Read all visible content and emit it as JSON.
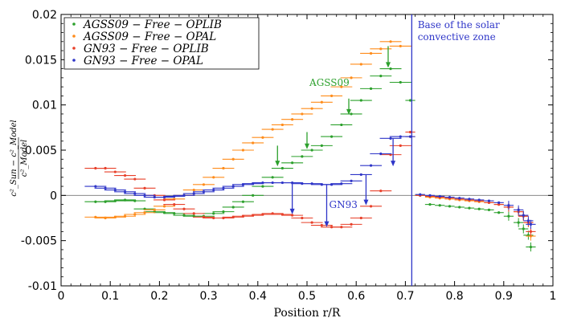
{
  "chart_data": {
    "type": "scatter",
    "title": "",
    "xlabel": "Position r/R",
    "ylabel_numerator": "c²_Sun − c²_Model",
    "ylabel_denominator": "c²_Model",
    "xlim": [
      0,
      1
    ],
    "ylim": [
      -0.01,
      0.02
    ],
    "x_ticks": [
      "0",
      "0.1",
      "0.2",
      "0.3",
      "0.4",
      "0.5",
      "0.6",
      "0.7",
      "0.8",
      "0.9",
      "1"
    ],
    "y_ticks": [
      "-0.01",
      "-0.005",
      "0",
      "0.005",
      "0.01",
      "0.015",
      "0.02"
    ],
    "legend_position": "top-left",
    "series": [
      {
        "name": "AGSS09 − Free − OPLIB",
        "color": "#2ca02c",
        "points": [
          [
            0.07,
            -0.0007
          ],
          [
            0.09,
            -0.0007
          ],
          [
            0.11,
            -0.0006
          ],
          [
            0.13,
            -0.0005
          ],
          [
            0.15,
            -0.0006
          ],
          [
            0.17,
            -0.0015
          ],
          [
            0.19,
            -0.0018
          ],
          [
            0.21,
            -0.0019
          ],
          [
            0.23,
            -0.002
          ],
          [
            0.25,
            -0.0022
          ],
          [
            0.27,
            -0.0023
          ],
          [
            0.29,
            -0.0023
          ],
          [
            0.31,
            -0.002
          ],
          [
            0.33,
            -0.0018
          ],
          [
            0.35,
            -0.0013
          ],
          [
            0.37,
            -0.0007
          ],
          [
            0.39,
            0.0
          ],
          [
            0.41,
            0.001
          ],
          [
            0.43,
            0.002
          ],
          [
            0.45,
            0.003
          ],
          [
            0.47,
            0.0036
          ],
          [
            0.49,
            0.0043
          ],
          [
            0.51,
            0.005
          ],
          [
            0.53,
            0.0055
          ],
          [
            0.55,
            0.0065
          ],
          [
            0.57,
            0.0078
          ],
          [
            0.59,
            0.009
          ],
          [
            0.61,
            0.0105
          ],
          [
            0.63,
            0.0118
          ],
          [
            0.65,
            0.0132
          ],
          [
            0.67,
            0.014
          ],
          [
            0.69,
            0.0125
          ],
          [
            0.71,
            0.0105
          ],
          [
            0.73,
            0.0
          ],
          [
            0.75,
            -0.001
          ],
          [
            0.77,
            -0.0011
          ],
          [
            0.79,
            -0.0012
          ],
          [
            0.81,
            -0.0013
          ],
          [
            0.83,
            -0.0014
          ],
          [
            0.85,
            -0.0015
          ],
          [
            0.87,
            -0.0016
          ],
          [
            0.89,
            -0.0019
          ],
          [
            0.91,
            -0.0023
          ],
          [
            0.93,
            -0.003
          ],
          [
            0.94,
            -0.0037
          ],
          [
            0.95,
            -0.0044
          ],
          [
            0.955,
            -0.0057
          ]
        ]
      },
      {
        "name": "AGSS09 − Free − OPAL",
        "color": "#ff8c1a",
        "points": [
          [
            0.07,
            -0.0024
          ],
          [
            0.09,
            -0.0025
          ],
          [
            0.11,
            -0.0024
          ],
          [
            0.13,
            -0.0023
          ],
          [
            0.15,
            -0.0021
          ],
          [
            0.17,
            -0.0019
          ],
          [
            0.19,
            -0.0016
          ],
          [
            0.21,
            -0.0012
          ],
          [
            0.23,
            -0.0004
          ],
          [
            0.25,
            0.0
          ],
          [
            0.27,
            0.0006
          ],
          [
            0.29,
            0.0012
          ],
          [
            0.31,
            0.002
          ],
          [
            0.33,
            0.003
          ],
          [
            0.35,
            0.004
          ],
          [
            0.37,
            0.005
          ],
          [
            0.39,
            0.0058
          ],
          [
            0.41,
            0.0064
          ],
          [
            0.43,
            0.0073
          ],
          [
            0.45,
            0.0078
          ],
          [
            0.47,
            0.0084
          ],
          [
            0.49,
            0.009
          ],
          [
            0.51,
            0.0096
          ],
          [
            0.53,
            0.0103
          ],
          [
            0.55,
            0.011
          ],
          [
            0.57,
            0.012
          ],
          [
            0.59,
            0.013
          ],
          [
            0.61,
            0.0145
          ],
          [
            0.63,
            0.0157
          ],
          [
            0.65,
            0.0162
          ],
          [
            0.67,
            0.017
          ],
          [
            0.69,
            0.0165
          ],
          [
            0.71,
            0.0065
          ],
          [
            0.73,
            0.0
          ],
          [
            0.75,
            -0.0002
          ],
          [
            0.77,
            -0.0003
          ],
          [
            0.79,
            -0.0004
          ],
          [
            0.81,
            -0.0005
          ],
          [
            0.83,
            -0.0006
          ],
          [
            0.85,
            -0.0007
          ],
          [
            0.87,
            -0.0008
          ],
          [
            0.89,
            -0.001
          ],
          [
            0.91,
            -0.0013
          ],
          [
            0.93,
            -0.0018
          ],
          [
            0.94,
            -0.0023
          ],
          [
            0.95,
            -0.003
          ],
          [
            0.955,
            -0.0045
          ]
        ]
      },
      {
        "name": "GN93 − Free − OPLIB",
        "color": "#e8402a",
        "points": [
          [
            0.07,
            0.003
          ],
          [
            0.09,
            0.003
          ],
          [
            0.11,
            0.0026
          ],
          [
            0.13,
            0.0022
          ],
          [
            0.15,
            0.0018
          ],
          [
            0.17,
            0.0008
          ],
          [
            0.19,
            0.0
          ],
          [
            0.21,
            -0.0005
          ],
          [
            0.23,
            -0.001
          ],
          [
            0.25,
            -0.0015
          ],
          [
            0.27,
            -0.002
          ],
          [
            0.29,
            -0.0024
          ],
          [
            0.31,
            -0.0025
          ],
          [
            0.33,
            -0.0025
          ],
          [
            0.35,
            -0.0024
          ],
          [
            0.37,
            -0.0023
          ],
          [
            0.39,
            -0.0022
          ],
          [
            0.41,
            -0.0021
          ],
          [
            0.43,
            -0.002
          ],
          [
            0.45,
            -0.0021
          ],
          [
            0.47,
            -0.0022
          ],
          [
            0.49,
            -0.0025
          ],
          [
            0.51,
            -0.003
          ],
          [
            0.53,
            -0.0033
          ],
          [
            0.55,
            -0.0035
          ],
          [
            0.57,
            -0.0035
          ],
          [
            0.59,
            -0.0032
          ],
          [
            0.61,
            -0.0025
          ],
          [
            0.63,
            -0.0012
          ],
          [
            0.65,
            0.0005
          ],
          [
            0.67,
            0.0045
          ],
          [
            0.69,
            0.0055
          ],
          [
            0.71,
            0.007
          ],
          [
            0.73,
            0.0
          ],
          [
            0.75,
            -0.0001
          ],
          [
            0.77,
            -0.0002
          ],
          [
            0.79,
            -0.0003
          ],
          [
            0.81,
            -0.0004
          ],
          [
            0.83,
            -0.0005
          ],
          [
            0.85,
            -0.0006
          ],
          [
            0.87,
            -0.0008
          ],
          [
            0.89,
            -0.001
          ],
          [
            0.91,
            -0.0013
          ],
          [
            0.93,
            -0.0018
          ],
          [
            0.94,
            -0.0023
          ],
          [
            0.95,
            -0.003
          ],
          [
            0.955,
            -0.004
          ]
        ]
      },
      {
        "name": "GN93 − Free − OPAL",
        "color": "#2e35c8",
        "points": [
          [
            0.07,
            0.001
          ],
          [
            0.09,
            0.0008
          ],
          [
            0.11,
            0.0006
          ],
          [
            0.13,
            0.0004
          ],
          [
            0.15,
            0.0002
          ],
          [
            0.17,
            0.0
          ],
          [
            0.19,
            -0.0002
          ],
          [
            0.21,
            -0.0002
          ],
          [
            0.23,
            -0.0001
          ],
          [
            0.25,
            0.0
          ],
          [
            0.27,
            0.0002
          ],
          [
            0.29,
            0.0004
          ],
          [
            0.31,
            0.0006
          ],
          [
            0.33,
            0.0008
          ],
          [
            0.35,
            0.001
          ],
          [
            0.37,
            0.0012
          ],
          [
            0.39,
            0.0013
          ],
          [
            0.41,
            0.0014
          ],
          [
            0.43,
            0.0014
          ],
          [
            0.45,
            0.0014
          ],
          [
            0.47,
            0.0014
          ],
          [
            0.49,
            0.0013
          ],
          [
            0.51,
            0.0013
          ],
          [
            0.53,
            0.0012
          ],
          [
            0.55,
            0.0012
          ],
          [
            0.57,
            0.0013
          ],
          [
            0.59,
            0.0016
          ],
          [
            0.61,
            0.0023
          ],
          [
            0.63,
            0.0033
          ],
          [
            0.65,
            0.0046
          ],
          [
            0.67,
            0.0063
          ],
          [
            0.69,
            0.0065
          ],
          [
            0.71,
            0.0065
          ],
          [
            0.73,
            0.0001
          ],
          [
            0.75,
            0.0
          ],
          [
            0.77,
            -0.0001
          ],
          [
            0.79,
            -0.0002
          ],
          [
            0.81,
            -0.0003
          ],
          [
            0.83,
            -0.0004
          ],
          [
            0.85,
            -0.0005
          ],
          [
            0.87,
            -0.0006
          ],
          [
            0.89,
            -0.0008
          ],
          [
            0.91,
            -0.0011
          ],
          [
            0.93,
            -0.0016
          ],
          [
            0.94,
            -0.0022
          ],
          [
            0.95,
            -0.0028
          ],
          [
            0.955,
            -0.0032
          ]
        ]
      }
    ],
    "vertical_line": {
      "x": 0.713,
      "color": "#2e35c8"
    },
    "annotations": [
      {
        "id": "base",
        "lines": [
          "Base of the solar",
          "convective zone"
        ],
        "color": "#2e35c8",
        "x": 0.725,
        "y": 0.0185
      },
      {
        "id": "agss",
        "lines": [
          "AGSS09"
        ],
        "color": "#2ca02c",
        "x": 0.505,
        "y": 0.0121
      },
      {
        "id": "gn",
        "lines": [
          "GN93"
        ],
        "color": "#2e35c8",
        "x": 0.545,
        "y": -0.0014
      }
    ],
    "arrows": [
      {
        "series": "AGSS09",
        "color": "#2ca02c",
        "x": 0.44,
        "from": 0.0055,
        "to": 0.0033
      },
      {
        "series": "AGSS09",
        "color": "#2ca02c",
        "x": 0.5,
        "from": 0.007,
        "to": 0.0052
      },
      {
        "series": "AGSS09",
        "color": "#2ca02c",
        "x": 0.585,
        "from": 0.0107,
        "to": 0.009
      },
      {
        "series": "AGSS09",
        "color": "#2ca02c",
        "x": 0.665,
        "from": 0.0165,
        "to": 0.0142
      },
      {
        "series": "GN93",
        "color": "#2e35c8",
        "x": 0.47,
        "from": 0.0014,
        "to": -0.002
      },
      {
        "series": "GN93",
        "color": "#2e35c8",
        "x": 0.54,
        "from": 0.0012,
        "to": -0.0034
      },
      {
        "series": "GN93",
        "color": "#2e35c8",
        "x": 0.62,
        "from": 0.0023,
        "to": -0.001
      },
      {
        "series": "GN93",
        "color": "#2e35c8",
        "x": 0.675,
        "from": 0.0063,
        "to": 0.0033
      }
    ]
  }
}
